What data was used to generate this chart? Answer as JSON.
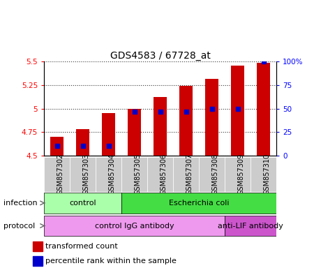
{
  "title": "GDS4583 / 67728_at",
  "samples": [
    "GSM857302",
    "GSM857303",
    "GSM857304",
    "GSM857305",
    "GSM857306",
    "GSM857307",
    "GSM857308",
    "GSM857309",
    "GSM857310"
  ],
  "transformed_count": [
    4.7,
    4.78,
    4.95,
    5.0,
    5.12,
    5.24,
    5.32,
    5.46,
    5.49
  ],
  "percentile_rank": [
    10,
    10,
    10,
    47,
    47,
    47,
    50,
    50,
    100
  ],
  "y_min": 4.5,
  "y_max": 5.5,
  "y_ticks": [
    4.5,
    4.75,
    5.0,
    5.25,
    5.5
  ],
  "y_tick_labels": [
    "4.5",
    "4.75",
    "5",
    "5.25",
    "5.5"
  ],
  "y2_ticks": [
    0,
    25,
    50,
    75,
    100
  ],
  "y2_tick_labels": [
    "0",
    "25",
    "50",
    "75",
    "100%"
  ],
  "bar_color": "#cc0000",
  "dot_color": "#0000cc",
  "infection_groups": [
    {
      "label": "control",
      "start": 0,
      "end": 3,
      "color": "#aaffaa"
    },
    {
      "label": "Escherichia coli",
      "start": 3,
      "end": 9,
      "color": "#44dd44"
    }
  ],
  "protocol_groups": [
    {
      "label": "control IgG antibody",
      "start": 0,
      "end": 7,
      "color": "#ee99ee"
    },
    {
      "label": "anti-LIF antibody",
      "start": 7,
      "end": 9,
      "color": "#cc55cc"
    }
  ],
  "infection_label": "infection",
  "protocol_label": "protocol",
  "legend_red_label": "transformed count",
  "legend_blue_label": "percentile rank within the sample",
  "bar_width": 0.5,
  "dot_size": 18,
  "title_fontsize": 10,
  "tick_fontsize": 7.5,
  "label_fontsize": 8,
  "group_label_fontsize": 8,
  "sample_label_fontsize": 7
}
